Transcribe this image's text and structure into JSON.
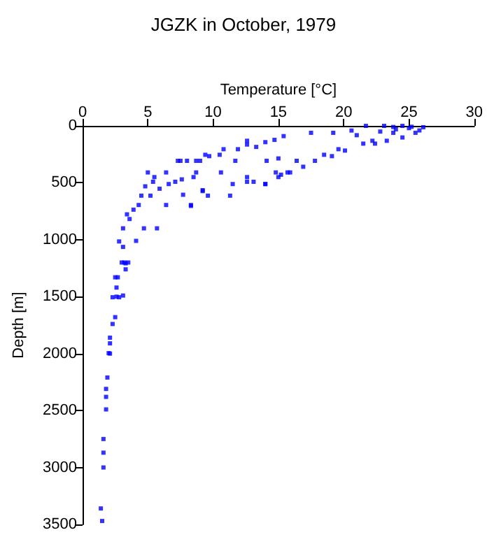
{
  "chart_data": {
    "type": "scatter",
    "title": "JGZK in October, 1979",
    "xlabel": "Temperature [°C]",
    "ylabel": "Depth [m]",
    "xlim": [
      0,
      30
    ],
    "xticks": [
      0,
      5,
      10,
      15,
      20,
      25,
      30
    ],
    "ylim": [
      3500,
      0
    ],
    "yticks": [
      0,
      500,
      1000,
      1500,
      2000,
      2500,
      3000,
      3500
    ],
    "grid": false,
    "marker": "square",
    "series": [
      {
        "color": "#0000ff",
        "x": [
          1.5,
          1.4,
          1.6,
          1.6,
          1.6,
          1.8,
          1.8,
          1.8,
          1.9,
          2.1,
          2.1,
          2.1,
          2.3,
          2.5,
          2.6,
          3.1,
          2.6,
          2.7,
          3.2,
          3.0,
          3.5,
          3.3,
          2.0,
          2.3,
          2.8,
          2.5,
          3.3,
          3.1,
          2.8,
          4.1,
          3.1,
          3.6,
          4.7,
          5.7,
          3.4,
          3.9,
          4.3,
          4.5,
          5.2,
          6.4,
          5.9,
          4.8,
          5.4,
          5.0,
          5.5,
          6.6,
          7.1,
          7.6,
          6.4,
          7.5,
          8.0,
          8.7,
          9.0,
          9.7,
          10.8,
          7.7,
          8.3,
          9.2,
          9.6,
          11.3,
          11.5,
          11.7,
          11.9,
          12.6,
          13.3,
          14.0,
          14.7,
          10.6,
          13.1,
          14.0,
          14.8,
          15.0,
          12.6,
          8.5,
          8.7,
          14.1,
          8.3,
          14.0,
          15.2,
          15.9,
          16.9,
          17.8,
          19.1,
          20.1,
          21.5,
          22.4,
          23.3,
          24.5,
          25.5,
          26.1,
          23.1,
          21.7,
          24.5,
          20.6,
          19.2,
          17.5,
          15.4,
          12.6,
          10.5,
          9.4,
          7.3,
          9.2,
          15.0,
          16.4,
          18.5,
          19.6,
          22.2,
          23.8,
          25.2,
          21.0,
          15.7,
          12.6,
          24.0,
          25.0,
          22.8,
          23.8,
          25.8
        ],
        "values": [
          3470,
          3360,
          3000,
          2870,
          2750,
          2490,
          2380,
          2310,
          2210,
          2000,
          1910,
          1860,
          1740,
          1680,
          1500,
          1490,
          1420,
          1330,
          1200,
          1200,
          1200,
          1260,
          1996,
          1505,
          1505,
          1330,
          1207,
          1063,
          1015,
          1010,
          900,
          818,
          900,
          900,
          777,
          736,
          695,
          613,
          613,
          695,
          552,
          531,
          491,
          409,
          450,
          511,
          491,
          470,
          409,
          307,
          307,
          307,
          307,
          266,
          205,
          605,
          695,
          573,
          613,
          613,
          511,
          307,
          205,
          164,
          185,
          143,
          123,
          409,
          491,
          511,
          409,
          450,
          450,
          450,
          409,
          307,
          703,
          511,
          429,
          409,
          359,
          307,
          266,
          217,
          156,
          156,
          131,
          102,
          61,
          12,
          0,
          0,
          0,
          41,
          61,
          61,
          90,
          131,
          254,
          254,
          307,
          565,
          286,
          307,
          254,
          205,
          131,
          61,
          8,
          82,
          409,
          491,
          30,
          20,
          50,
          10,
          40
        ]
      }
    ]
  }
}
